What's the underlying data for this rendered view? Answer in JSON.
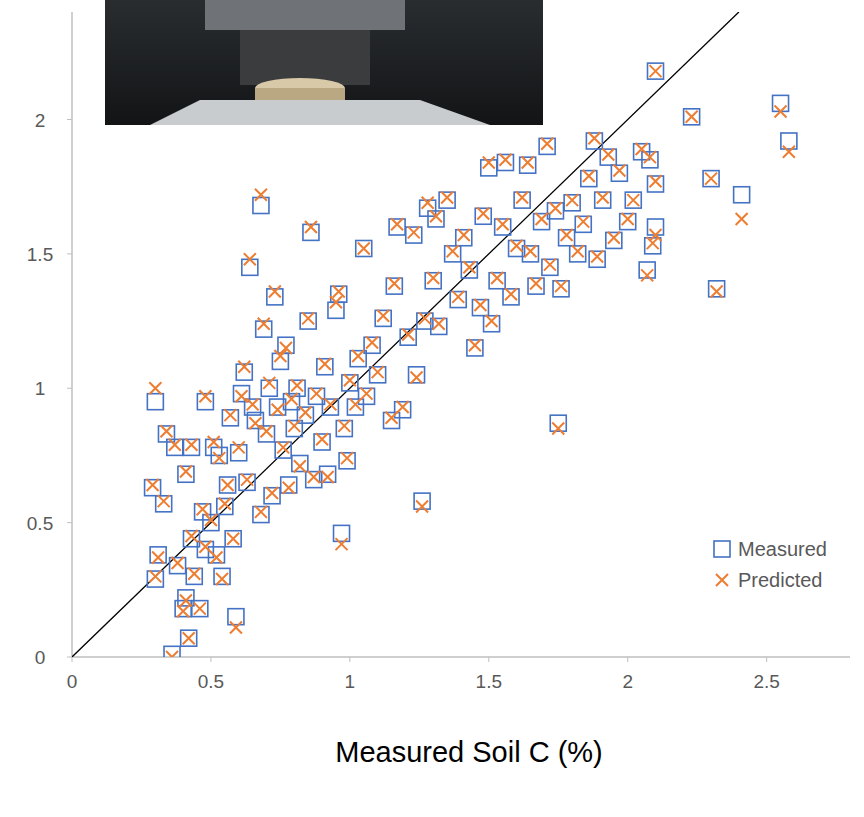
{
  "chart_data": {
    "type": "scatter",
    "x_label": "Measured Soil C (%)",
    "x": [
      0.3,
      0.29,
      0.31,
      0.3,
      0.33,
      0.34,
      0.36,
      0.37,
      0.38,
      0.4,
      0.41,
      0.42,
      0.41,
      0.43,
      0.43,
      0.44,
      0.46,
      0.47,
      0.48,
      0.48,
      0.5,
      0.51,
      0.52,
      0.53,
      0.54,
      0.55,
      0.56,
      0.57,
      0.58,
      0.59,
      0.6,
      0.61,
      0.62,
      0.63,
      0.64,
      0.65,
      0.66,
      0.68,
      0.68,
      0.69,
      0.7,
      0.71,
      0.72,
      0.73,
      0.74,
      0.75,
      0.76,
      0.77,
      0.78,
      0.79,
      0.8,
      0.81,
      0.82,
      0.84,
      0.85,
      0.86,
      0.87,
      0.88,
      0.9,
      0.91,
      0.92,
      0.93,
      0.95,
      0.96,
      0.97,
      0.98,
      0.99,
      1.0,
      1.02,
      1.03,
      1.05,
      1.06,
      1.08,
      1.1,
      1.12,
      1.15,
      1.16,
      1.17,
      1.19,
      1.21,
      1.23,
      1.24,
      1.26,
      1.27,
      1.28,
      1.3,
      1.31,
      1.32,
      1.35,
      1.37,
      1.39,
      1.41,
      1.43,
      1.45,
      1.47,
      1.48,
      1.5,
      1.51,
      1.53,
      1.55,
      1.56,
      1.58,
      1.6,
      1.62,
      1.64,
      1.65,
      1.67,
      1.69,
      1.71,
      1.72,
      1.74,
      1.75,
      1.76,
      1.78,
      1.8,
      1.82,
      1.84,
      1.86,
      1.88,
      1.89,
      1.91,
      1.93,
      1.95,
      1.97,
      2.0,
      2.02,
      2.05,
      2.07,
      2.08,
      2.09,
      2.1,
      2.1,
      2.1,
      2.23,
      2.3,
      2.32,
      2.41,
      2.55,
      2.58
    ],
    "series": [
      {
        "name": "Measured",
        "color": "#4472c4",
        "marker": "square",
        "values": [
          0.95,
          0.63,
          0.38,
          0.29,
          0.57,
          0.83,
          0.01,
          0.78,
          0.34,
          0.18,
          0.22,
          0.07,
          0.68,
          0.44,
          0.78,
          0.3,
          0.18,
          0.54,
          0.95,
          0.4,
          0.5,
          0.78,
          0.38,
          0.75,
          0.3,
          0.56,
          0.64,
          0.89,
          0.44,
          0.15,
          0.76,
          0.98,
          1.06,
          0.65,
          1.45,
          0.93,
          0.88,
          1.68,
          0.53,
          1.22,
          0.83,
          1.0,
          0.6,
          1.34,
          0.93,
          1.1,
          0.77,
          1.16,
          0.64,
          0.95,
          0.85,
          1.0,
          0.72,
          0.9,
          1.25,
          1.58,
          0.66,
          0.97,
          0.8,
          1.08,
          0.68,
          0.93,
          1.29,
          1.35,
          0.46,
          0.85,
          0.73,
          1.02,
          0.93,
          1.11,
          1.52,
          0.97,
          1.16,
          1.05,
          1.26,
          0.88,
          1.38,
          1.6,
          0.92,
          1.19,
          1.57,
          1.05,
          0.58,
          1.25,
          1.67,
          1.4,
          1.63,
          1.23,
          1.7,
          1.5,
          1.33,
          1.56,
          1.44,
          1.15,
          1.3,
          1.64,
          1.82,
          1.24,
          1.4,
          1.6,
          1.84,
          1.34,
          1.52,
          1.7,
          1.83,
          1.5,
          1.38,
          1.62,
          1.9,
          1.45,
          1.66,
          0.87,
          1.37,
          1.56,
          1.69,
          1.5,
          1.61,
          1.78,
          1.92,
          1.48,
          1.7,
          1.86,
          1.55,
          1.8,
          1.62,
          1.7,
          1.88,
          1.44,
          1.85,
          1.53,
          1.6,
          2.18,
          1.76,
          2.01,
          1.78,
          1.37,
          1.72,
          2.06,
          1.92
        ]
      },
      {
        "name": "Predicted",
        "color": "#ed7d31",
        "marker": "x",
        "values": [
          1.0,
          0.64,
          0.37,
          0.3,
          0.58,
          0.84,
          0.0,
          0.79,
          0.35,
          0.17,
          0.21,
          0.07,
          0.69,
          0.45,
          0.79,
          0.31,
          0.18,
          0.55,
          0.97,
          0.41,
          0.51,
          0.8,
          0.37,
          0.74,
          0.29,
          0.57,
          0.64,
          0.9,
          0.44,
          0.11,
          0.78,
          0.97,
          1.08,
          0.66,
          1.48,
          0.94,
          0.87,
          1.72,
          0.54,
          1.24,
          0.84,
          1.02,
          0.61,
          1.36,
          0.92,
          1.12,
          0.78,
          1.15,
          0.63,
          0.96,
          0.86,
          1.01,
          0.71,
          0.91,
          1.26,
          1.6,
          0.67,
          0.98,
          0.81,
          1.09,
          0.67,
          0.94,
          1.32,
          1.36,
          0.42,
          0.86,
          0.74,
          1.03,
          0.94,
          1.12,
          1.52,
          0.98,
          1.17,
          1.06,
          1.27,
          0.89,
          1.39,
          1.61,
          0.93,
          1.2,
          1.58,
          1.04,
          0.56,
          1.26,
          1.69,
          1.41,
          1.64,
          1.24,
          1.71,
          1.51,
          1.34,
          1.57,
          1.45,
          1.16,
          1.31,
          1.65,
          1.84,
          1.25,
          1.41,
          1.61,
          1.85,
          1.35,
          1.53,
          1.71,
          1.84,
          1.51,
          1.39,
          1.63,
          1.91,
          1.46,
          1.67,
          0.85,
          1.38,
          1.57,
          1.7,
          1.51,
          1.62,
          1.79,
          1.93,
          1.49,
          1.71,
          1.87,
          1.56,
          1.81,
          1.63,
          1.7,
          1.89,
          1.42,
          1.86,
          1.54,
          1.57,
          2.18,
          1.77,
          2.01,
          1.78,
          1.36,
          1.63,
          2.03,
          1.88
        ]
      }
    ],
    "xlim": [
      0,
      2.8
    ],
    "ylim": [
      0,
      2.4
    ],
    "xticks": [
      0,
      0.5,
      1,
      1.5,
      2,
      2.5
    ],
    "yticks": [
      0,
      0.5,
      1,
      1.5,
      2
    ],
    "grid": false,
    "legend": "bottom-right"
  }
}
